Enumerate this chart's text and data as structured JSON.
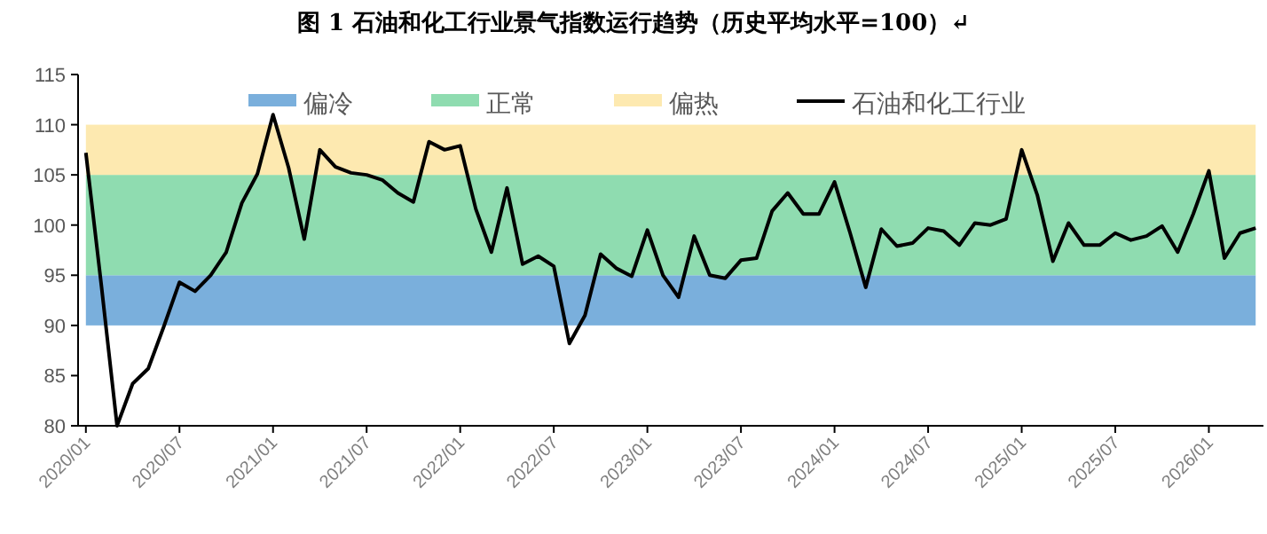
{
  "chart_data": {
    "type": "line",
    "title": "图 1  石油和化工行业景气指数运行趋势（历史平均水平=100）↵",
    "categories": [
      "2020/01",
      null,
      null,
      null,
      null,
      null,
      "2020/07",
      null,
      null,
      null,
      null,
      null,
      "2021/01",
      null,
      null,
      null,
      null,
      null,
      "2021/07",
      null,
      null,
      null,
      null,
      null,
      "2022/01",
      null,
      null,
      null,
      null,
      null,
      "2022/07",
      null,
      null,
      null,
      null,
      null,
      "2023/01",
      null,
      null,
      null,
      null,
      null,
      "2023/07",
      null,
      null,
      null,
      null,
      null,
      "2024/01",
      null,
      null,
      null,
      null,
      null,
      "2024/07",
      null,
      null,
      null,
      null,
      null,
      "2025/01",
      null,
      null,
      null,
      null,
      null,
      "2025/07",
      null,
      null,
      null,
      null,
      null,
      "2026/01",
      null,
      null,
      null
    ],
    "series": [
      {
        "name": "石油和化工行业",
        "color": "#000000",
        "values": [
          107.2,
          93.9,
          80,
          84.2,
          85.7,
          89.9,
          94.3,
          93.4,
          95.0,
          97.3,
          102.2,
          105.1,
          111.0,
          105.7,
          98.6,
          107.5,
          105.8,
          105.2,
          105.0,
          104.5,
          103.2,
          102.3,
          108.3,
          107.5,
          107.9,
          101.6,
          97.3,
          103.7,
          96.1,
          96.9,
          95.9,
          88.2,
          91.0,
          97.1,
          95.7,
          94.9,
          99.5,
          95.0,
          92.8,
          98.9,
          95.0,
          94.7,
          96.5,
          96.7,
          101.4,
          103.2,
          101.1,
          101.1,
          104.3,
          99.2,
          93.8,
          99.6,
          97.9,
          98.2,
          99.7,
          99.4,
          98.0,
          100.2,
          100.0,
          100.6,
          107.5,
          103.0,
          96.4,
          100.2,
          98.0,
          98.0,
          99.2,
          98.5,
          98.9,
          99.9,
          97.3,
          101.1,
          105.4,
          96.7,
          99.2,
          99.7
        ]
      }
    ],
    "bands": [
      {
        "axis": "y",
        "from": 90,
        "to": 95,
        "label": "偏冷",
        "color": "#7aafdc"
      },
      {
        "axis": "y",
        "from": 95,
        "to": 105,
        "label": "正常",
        "color": "#8fdcb0"
      },
      {
        "axis": "y",
        "from": 105,
        "to": 110,
        "label": "偏热",
        "color": "#fde9b0"
      }
    ],
    "ylim": [
      80,
      115
    ],
    "yticks": [
      80,
      85,
      90,
      95,
      100,
      105,
      110,
      115
    ],
    "legend": "top",
    "grid": false,
    "marker": "none",
    "line_style": "solid"
  }
}
